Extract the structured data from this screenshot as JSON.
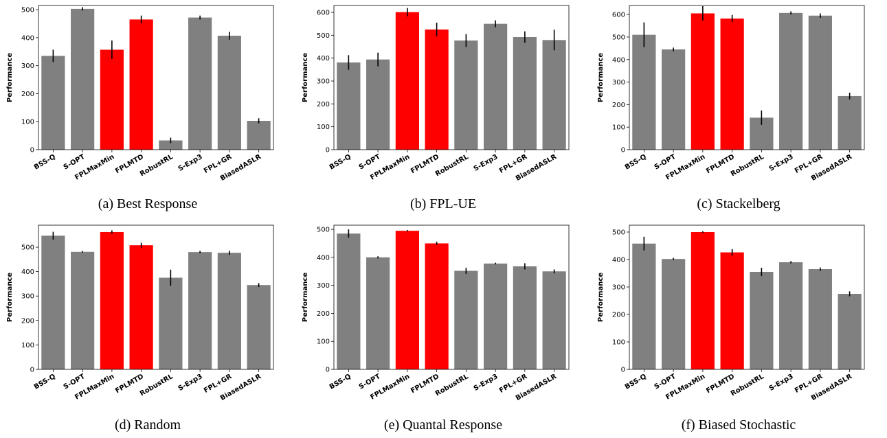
{
  "colors": {
    "default_bar": "#808080",
    "highlight_bar": "#ff0000",
    "error_bar": "#000000"
  },
  "chart_data": [
    {
      "type": "bar",
      "caption": "(a) Best Response",
      "ylabel": "Performance",
      "ylim": [
        0,
        515
      ],
      "yticks": [
        0,
        100,
        200,
        300,
        400,
        500
      ],
      "categories": [
        "BSS-Q",
        "S-OPT",
        "FPLMaxMin",
        "FPLMTD",
        "RobustRL",
        "S-Exp3",
        "FPL+GR",
        "BiasedASLR"
      ],
      "values": [
        335,
        503,
        357,
        465,
        33,
        472,
        407,
        103
      ],
      "errors": [
        22,
        6,
        33,
        14,
        10,
        7,
        14,
        9
      ],
      "highlighted": [
        "FPLMaxMin",
        "FPLMTD"
      ]
    },
    {
      "type": "bar",
      "caption": "(b) FPL-UE",
      "ylabel": "Performance",
      "ylim": [
        0,
        630
      ],
      "yticks": [
        0,
        100,
        200,
        300,
        400,
        500,
        600
      ],
      "categories": [
        "BSS-Q",
        "S-OPT",
        "FPLMaxMin",
        "FPLMTD",
        "RobustRL",
        "S-Exp3",
        "FPL+GR",
        "BiasedASLR"
      ],
      "values": [
        381,
        394,
        601,
        525,
        477,
        550,
        492,
        479
      ],
      "errors": [
        32,
        30,
        18,
        30,
        28,
        15,
        25,
        45
      ],
      "highlighted": [
        "FPLMaxMin",
        "FPLMTD"
      ]
    },
    {
      "type": "bar",
      "caption": "(c) Stackelberg",
      "ylabel": "Performance",
      "ylim": [
        0,
        640
      ],
      "yticks": [
        0,
        100,
        200,
        300,
        400,
        500,
        600
      ],
      "categories": [
        "BSS-Q",
        "S-OPT",
        "FPLMaxMin",
        "FPLMTD",
        "RobustRL",
        "S-Exp3",
        "FPL+GR",
        "BiasedASLR"
      ],
      "values": [
        510,
        445,
        605,
        582,
        142,
        607,
        595,
        238
      ],
      "errors": [
        55,
        8,
        32,
        16,
        32,
        7,
        10,
        15
      ],
      "highlighted": [
        "FPLMaxMin",
        "FPLMTD"
      ]
    },
    {
      "type": "bar",
      "caption": "(d) Random",
      "ylabel": "Performance",
      "ylim": [
        0,
        590
      ],
      "yticks": [
        0,
        100,
        200,
        300,
        400,
        500
      ],
      "categories": [
        "BSS-Q",
        "S-OPT",
        "FPLMaxMin",
        "FPLMTD",
        "RobustRL",
        "S-Exp3",
        "FPL+GR",
        "BiasedASLR"
      ],
      "values": [
        547,
        481,
        562,
        508,
        375,
        480,
        477,
        345
      ],
      "errors": [
        16,
        3,
        7,
        10,
        33,
        5,
        8,
        8
      ],
      "highlighted": [
        "FPLMaxMin",
        "FPLMTD"
      ]
    },
    {
      "type": "bar",
      "caption": "(e) Quantal Response",
      "ylabel": "Performance",
      "ylim": [
        0,
        515
      ],
      "yticks": [
        0,
        100,
        200,
        300,
        400,
        500
      ],
      "categories": [
        "BSS-Q",
        "S-OPT",
        "FPLMaxMin",
        "FPLMTD",
        "RobustRL",
        "S-Exp3",
        "FPL+GR",
        "BiasedASLR"
      ],
      "values": [
        485,
        400,
        495,
        450,
        352,
        378,
        368,
        350
      ],
      "errors": [
        15,
        4,
        3,
        6,
        11,
        3,
        11,
        7
      ],
      "highlighted": [
        "FPLMaxMin",
        "FPLMTD"
      ]
    },
    {
      "type": "bar",
      "caption": "(f) Biased Stochastic",
      "ylabel": "Performance",
      "ylim": [
        0,
        525
      ],
      "yticks": [
        0,
        100,
        200,
        300,
        400,
        500
      ],
      "categories": [
        "BSS-Q",
        "S-OPT",
        "FPLMaxMin",
        "FPLMTD",
        "RobustRL",
        "S-Exp3",
        "FPL+GR",
        "BiasedASLR"
      ],
      "values": [
        458,
        402,
        500,
        426,
        355,
        390,
        365,
        275
      ],
      "errors": [
        25,
        4,
        3,
        12,
        15,
        4,
        6,
        9
      ],
      "highlighted": [
        "FPLMaxMin",
        "FPLMTD"
      ]
    }
  ]
}
